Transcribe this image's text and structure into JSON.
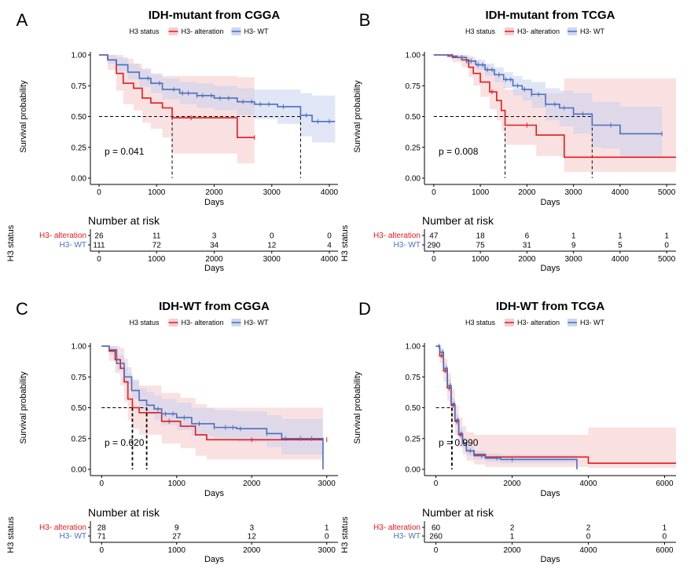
{
  "colors": {
    "h3_alteration": "#e41a1c",
    "h3_wt": "#4a6fbe",
    "alt_band": "#f6c9c9",
    "wt_band": "#c7d2ee"
  },
  "legend": {
    "title": "H3 status",
    "alteration": "H3- alteration",
    "wt": "H3- WT"
  },
  "risk": {
    "heading": "Number at risk",
    "ylabel": "H3 status",
    "xlabel": "Days"
  },
  "chart_data": [
    {
      "letter": "A",
      "type": "line",
      "title": "IDH-mutant from CGGA",
      "xlabel": "Days",
      "ylabel": "Survival probability",
      "xlim": [
        -150,
        4150
      ],
      "ylim": [
        0,
        1
      ],
      "xticks": [
        0,
        1000,
        2000,
        3000,
        4000
      ],
      "yticks": [
        "0.00",
        "0.25",
        "0.50",
        "0.75",
        "1.00"
      ],
      "pvalue": "p = 0.041",
      "medians": [
        1270,
        3500
      ],
      "series": [
        {
          "name": "H3- alteration",
          "x": [
            0,
            150,
            300,
            420,
            600,
            750,
            900,
            1100,
            1270,
            2400,
            2700
          ],
          "y": [
            1.0,
            0.96,
            0.85,
            0.77,
            0.73,
            0.65,
            0.61,
            0.57,
            0.49,
            0.33,
            0.33
          ],
          "lower": [
            1.0,
            0.88,
            0.71,
            0.6,
            0.55,
            0.45,
            0.4,
            0.33,
            0.2,
            0.12,
            0.12
          ],
          "upper": [
            1.0,
            1.0,
            1.0,
            0.97,
            0.93,
            0.88,
            0.84,
            0.83,
            0.83,
            0.82,
            0.82
          ],
          "censor_x": [
            1600,
            2700
          ]
        },
        {
          "name": "H3- WT",
          "x": [
            0,
            150,
            300,
            500,
            700,
            900,
            1100,
            1400,
            1700,
            2000,
            2400,
            2700,
            3100,
            3500,
            3700,
            4100
          ],
          "y": [
            1.0,
            0.96,
            0.92,
            0.86,
            0.81,
            0.77,
            0.72,
            0.69,
            0.67,
            0.65,
            0.62,
            0.6,
            0.58,
            0.51,
            0.46,
            0.46
          ],
          "lower": [
            1.0,
            0.93,
            0.87,
            0.8,
            0.74,
            0.69,
            0.64,
            0.6,
            0.57,
            0.55,
            0.51,
            0.48,
            0.44,
            0.34,
            0.29,
            0.29
          ],
          "upper": [
            1.0,
            1.0,
            0.98,
            0.93,
            0.89,
            0.85,
            0.81,
            0.78,
            0.77,
            0.75,
            0.73,
            0.72,
            0.72,
            0.69,
            0.67,
            0.67
          ],
          "censor_x": [
            850,
            1050,
            1300,
            1450,
            1550,
            1700,
            1800,
            1950,
            2100,
            2250,
            2500,
            2650,
            2800,
            2950,
            3200,
            3600,
            3800,
            4000
          ]
        }
      ],
      "risk_x": [
        0,
        1000,
        2000,
        3000,
        4000
      ],
      "risk_alt": [
        "26",
        "11",
        "3",
        "0",
        "0"
      ],
      "risk_wt": [
        "111",
        "72",
        "34",
        "12",
        "4"
      ]
    },
    {
      "letter": "B",
      "type": "line",
      "title": "IDH-mutant from TCGA",
      "xlabel": "Days",
      "ylabel": "Survival probability",
      "xlim": [
        -200,
        5200
      ],
      "ylim": [
        0,
        1
      ],
      "xticks": [
        0,
        1000,
        2000,
        3000,
        4000,
        5000
      ],
      "yticks": [
        "0.00",
        "0.25",
        "0.50",
        "0.75",
        "1.00"
      ],
      "pvalue": "p = 0.008",
      "medians": [
        1530,
        3400
      ],
      "series": [
        {
          "name": "H3- alteration",
          "x": [
            0,
            400,
            600,
            750,
            850,
            1000,
            1200,
            1350,
            1450,
            1530,
            2200,
            2800,
            5200
          ],
          "y": [
            1.0,
            0.98,
            0.96,
            0.9,
            0.85,
            0.78,
            0.7,
            0.63,
            0.55,
            0.43,
            0.35,
            0.17,
            0.17
          ],
          "lower": [
            1.0,
            0.94,
            0.9,
            0.82,
            0.75,
            0.66,
            0.56,
            0.47,
            0.38,
            0.27,
            0.18,
            0.05,
            0.05
          ],
          "upper": [
            1.0,
            1.0,
            1.0,
            0.99,
            0.96,
            0.92,
            0.88,
            0.84,
            0.79,
            0.72,
            0.69,
            0.81,
            0.81
          ],
          "censor_x": [
            1250,
            2000
          ]
        },
        {
          "name": "H3- WT",
          "x": [
            0,
            300,
            500,
            700,
            900,
            1100,
            1300,
            1500,
            1700,
            1900,
            2100,
            2400,
            2700,
            3000,
            3400,
            3600,
            4000,
            4900
          ],
          "y": [
            1.0,
            0.99,
            0.98,
            0.95,
            0.92,
            0.88,
            0.84,
            0.8,
            0.75,
            0.72,
            0.68,
            0.6,
            0.57,
            0.52,
            0.43,
            0.43,
            0.36,
            0.36
          ],
          "lower": [
            1.0,
            0.98,
            0.96,
            0.92,
            0.88,
            0.83,
            0.78,
            0.73,
            0.67,
            0.63,
            0.57,
            0.47,
            0.42,
            0.36,
            0.25,
            0.24,
            0.17,
            0.17
          ],
          "upper": [
            1.0,
            1.0,
            1.0,
            0.98,
            0.96,
            0.93,
            0.9,
            0.86,
            0.83,
            0.8,
            0.78,
            0.73,
            0.71,
            0.69,
            0.62,
            0.62,
            0.58,
            0.58
          ],
          "censor_x": [
            400,
            600,
            700,
            800,
            950,
            1050,
            1150,
            1250,
            1400,
            1550,
            1650,
            1800,
            1950,
            2100,
            2250,
            2400,
            2600,
            2800,
            3000,
            3200,
            3800,
            4900
          ]
        }
      ],
      "risk_x": [
        0,
        1000,
        2000,
        3000,
        4000,
        5000
      ],
      "risk_alt": [
        "47",
        "18",
        "6",
        "1",
        "1",
        "1"
      ],
      "risk_wt": [
        "290",
        "75",
        "31",
        "9",
        "5",
        "0"
      ]
    },
    {
      "letter": "C",
      "type": "line",
      "title": "IDH-WT from CGGA",
      "xlabel": "Days",
      "ylabel": "Survival probability",
      "xlim": [
        -150,
        3150
      ],
      "ylim": [
        0,
        1
      ],
      "xticks": [
        0,
        1000,
        2000,
        3000
      ],
      "yticks": [
        "0.00",
        "0.25",
        "0.50",
        "0.75",
        "1.00"
      ],
      "pvalue": "p = 0.620",
      "medians": [
        410,
        600
      ],
      "series": [
        {
          "name": "H3- alteration",
          "x": [
            0,
            100,
            180,
            250,
            300,
            350,
            410,
            500,
            750,
            800,
            1050,
            1250,
            1400,
            2950
          ],
          "y": [
            1.0,
            0.96,
            0.89,
            0.82,
            0.71,
            0.57,
            0.5,
            0.46,
            0.46,
            0.39,
            0.35,
            0.28,
            0.24,
            0.24
          ],
          "lower": [
            1.0,
            0.88,
            0.78,
            0.68,
            0.55,
            0.4,
            0.33,
            0.28,
            0.28,
            0.21,
            0.17,
            0.11,
            0.08,
            0.08
          ],
          "upper": [
            1.0,
            1.0,
            1.0,
            0.98,
            0.9,
            0.78,
            0.72,
            0.68,
            0.68,
            0.62,
            0.58,
            0.53,
            0.5,
            0.5
          ],
          "censor_x": [
            900,
            2000,
            3000
          ]
        },
        {
          "name": "H3- WT",
          "x": [
            0,
            100,
            200,
            300,
            400,
            500,
            600,
            700,
            800,
            1000,
            1200,
            1500,
            1800,
            2200,
            2400,
            2900,
            2950
          ],
          "y": [
            1.0,
            0.97,
            0.86,
            0.75,
            0.64,
            0.56,
            0.52,
            0.49,
            0.45,
            0.42,
            0.37,
            0.34,
            0.33,
            0.29,
            0.25,
            0.25,
            0.0
          ],
          "lower": [
            1.0,
            0.93,
            0.8,
            0.69,
            0.57,
            0.48,
            0.44,
            0.4,
            0.36,
            0.32,
            0.27,
            0.24,
            0.22,
            0.18,
            0.12,
            0.12,
            0.12
          ],
          "upper": [
            1.0,
            1.0,
            0.93,
            0.83,
            0.73,
            0.66,
            0.63,
            0.6,
            0.57,
            0.54,
            0.5,
            0.48,
            0.47,
            0.44,
            0.41,
            0.41,
            0.41
          ],
          "censor_x": [
            750,
            850,
            950,
            1100,
            1300,
            1500,
            1650,
            1750,
            1850,
            2200,
            2450,
            2650,
            2800
          ]
        }
      ],
      "risk_x": [
        0,
        1000,
        2000,
        3000
      ],
      "risk_alt": [
        "28",
        "9",
        "3",
        "1"
      ],
      "risk_wt": [
        "71",
        "27",
        "12",
        "0"
      ]
    },
    {
      "letter": "D",
      "type": "line",
      "title": "IDH-WT from TCGA",
      "xlabel": "Days",
      "ylabel": "Survival probability",
      "xlim": [
        -300,
        6300
      ],
      "ylim": [
        0,
        1
      ],
      "xticks": [
        0,
        2000,
        4000,
        6000
      ],
      "yticks": [
        "0.00",
        "0.25",
        "0.50",
        "0.75",
        "1.00"
      ],
      "pvalue": "p = 0.990",
      "medians": [
        420
      ],
      "series": [
        {
          "name": "H3- alteration",
          "x": [
            0,
            100,
            200,
            300,
            400,
            500,
            600,
            700,
            800,
            1000,
            1300,
            4000,
            6300
          ],
          "y": [
            1.0,
            0.92,
            0.8,
            0.66,
            0.52,
            0.39,
            0.28,
            0.21,
            0.15,
            0.12,
            0.1,
            0.05,
            0.05
          ],
          "lower": [
            1.0,
            0.86,
            0.71,
            0.55,
            0.41,
            0.28,
            0.18,
            0.12,
            0.07,
            0.04,
            0.02,
            0.01,
            0.01
          ],
          "upper": [
            1.0,
            0.98,
            0.9,
            0.78,
            0.65,
            0.52,
            0.42,
            0.35,
            0.3,
            0.28,
            0.28,
            0.34,
            0.34
          ],
          "censor_x": [
            150,
            250,
            350,
            450,
            550,
            650
          ]
        },
        {
          "name": "H3- WT",
          "x": [
            0,
            100,
            200,
            300,
            400,
            500,
            600,
            700,
            800,
            1000,
            1300,
            1700,
            3700
          ],
          "y": [
            1.0,
            0.95,
            0.82,
            0.68,
            0.53,
            0.4,
            0.29,
            0.21,
            0.15,
            0.11,
            0.09,
            0.08,
            0.0
          ],
          "lower": [
            1.0,
            0.92,
            0.78,
            0.63,
            0.48,
            0.35,
            0.24,
            0.17,
            0.11,
            0.08,
            0.06,
            0.05,
            0.05
          ],
          "upper": [
            1.0,
            0.98,
            0.86,
            0.73,
            0.58,
            0.45,
            0.34,
            0.26,
            0.19,
            0.15,
            0.13,
            0.12,
            0.12
          ],
          "censor_x": [
            80,
            180,
            280,
            380,
            480,
            580,
            680,
            900,
            1200,
            1600,
            2000
          ]
        }
      ],
      "risk_x": [
        0,
        2000,
        4000,
        6000
      ],
      "risk_alt": [
        "60",
        "2",
        "2",
        "1"
      ],
      "risk_wt": [
        "260",
        "1",
        "0",
        "0"
      ]
    }
  ]
}
